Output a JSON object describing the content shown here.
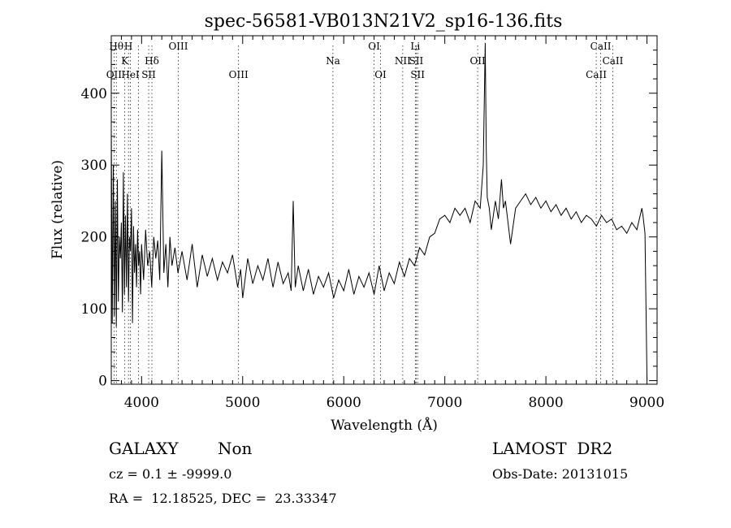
{
  "chart_data": {
    "type": "line",
    "title": "spec-56581-VB013N21V2_sp16-136.fits",
    "xlabel": "Wavelength (Å)",
    "ylabel": "Flux (relative)",
    "xlim": [
      3700,
      9100
    ],
    "ylim": [
      -5,
      480
    ],
    "xticks": [
      4000,
      5000,
      6000,
      7000,
      8000,
      9000
    ],
    "yticks": [
      0,
      100,
      200,
      300,
      400
    ],
    "grid": false,
    "series": [
      {
        "x": [
          3700,
          3710,
          3720,
          3730,
          3740,
          3750,
          3760,
          3770,
          3780,
          3790,
          3800,
          3810,
          3820,
          3830,
          3840,
          3850,
          3860,
          3870,
          3880,
          3890,
          3900,
          3910,
          3920,
          3930,
          3940,
          3950,
          3960,
          3970,
          3980,
          3990,
          4000,
          4020,
          4040,
          4060,
          4080,
          4100,
          4120,
          4140,
          4160,
          4180,
          4200,
          4220,
          4240,
          4260,
          4280,
          4300,
          4330,
          4360,
          4400,
          4450,
          4500,
          4550,
          4600,
          4650,
          4700,
          4750,
          4800,
          4850,
          4900,
          4950,
          4980,
          5000,
          5050,
          5100,
          5150,
          5200,
          5250,
          5300,
          5350,
          5400,
          5450,
          5480,
          5500,
          5520,
          5550,
          5600,
          5650,
          5700,
          5750,
          5800,
          5850,
          5900,
          5950,
          6000,
          6050,
          6100,
          6150,
          6200,
          6250,
          6300,
          6350,
          6400,
          6450,
          6500,
          6550,
          6600,
          6650,
          6700,
          6750,
          6800,
          6850,
          6900,
          6950,
          7000,
          7050,
          7100,
          7150,
          7200,
          7250,
          7300,
          7350,
          7380,
          7400,
          7410,
          7420,
          7440,
          7460,
          7500,
          7530,
          7560,
          7580,
          7600,
          7650,
          7700,
          7750,
          7800,
          7850,
          7900,
          7950,
          8000,
          8050,
          8100,
          8150,
          8200,
          8250,
          8300,
          8350,
          8400,
          8450,
          8500,
          8550,
          8600,
          8650,
          8700,
          8750,
          8800,
          8850,
          8900,
          8950,
          8960,
          8980,
          9000
        ],
        "y": [
          355,
          80,
          300,
          90,
          250,
          75,
          280,
          110,
          200,
          170,
          220,
          95,
          290,
          120,
          230,
          130,
          260,
          110,
          200,
          180,
          240,
          80,
          215,
          150,
          190,
          130,
          210,
          160,
          180,
          120,
          190,
          140,
          210,
          160,
          180,
          130,
          200,
          170,
          195,
          140,
          320,
          150,
          190,
          130,
          200,
          160,
          185,
          150,
          180,
          140,
          190,
          130,
          175,
          145,
          170,
          140,
          165,
          150,
          175,
          130,
          155,
          115,
          170,
          135,
          160,
          140,
          170,
          130,
          165,
          135,
          150,
          125,
          250,
          130,
          160,
          125,
          155,
          120,
          145,
          130,
          150,
          115,
          140,
          125,
          155,
          120,
          145,
          130,
          150,
          120,
          160,
          125,
          150,
          135,
          165,
          145,
          170,
          160,
          185,
          175,
          200,
          205,
          225,
          230,
          220,
          240,
          230,
          240,
          220,
          250,
          240,
          300,
          470,
          320,
          255,
          240,
          210,
          250,
          225,
          280,
          240,
          250,
          190,
          240,
          250,
          260,
          245,
          255,
          240,
          250,
          235,
          245,
          230,
          240,
          225,
          235,
          220,
          230,
          225,
          215,
          230,
          220,
          225,
          210,
          215,
          205,
          220,
          210,
          240,
          230,
          205,
          0
        ]
      }
    ],
    "line_labels": [
      {
        "label": "Hθ",
        "x": 3750,
        "row": 1
      },
      {
        "label": "H",
        "x": 3870,
        "row": 1
      },
      {
        "label": "OIII",
        "x": 4363,
        "row": 1
      },
      {
        "label": "OI",
        "x": 6300,
        "row": 1
      },
      {
        "label": "Li",
        "x": 6708,
        "row": 1
      },
      {
        "label": "CaII",
        "x": 8542,
        "row": 1
      },
      {
        "label": "K",
        "x": 3834,
        "row": 2
      },
      {
        "label": "Hδ",
        "x": 4102,
        "row": 2
      },
      {
        "label": "Na",
        "x": 5893,
        "row": 2
      },
      {
        "label": "NII",
        "x": 6584,
        "row": 2
      },
      {
        "label": "SII",
        "x": 6717,
        "row": 2
      },
      {
        "label": "OII",
        "x": 7325,
        "row": 2
      },
      {
        "label": "CaII",
        "x": 8662,
        "row": 2
      },
      {
        "label": "OII",
        "x": 3727,
        "row": 3
      },
      {
        "label": "HeI",
        "x": 3889,
        "row": 3
      },
      {
        "label": "SII",
        "x": 4070,
        "row": 3
      },
      {
        "label": "OIII",
        "x": 4959,
        "row": 3
      },
      {
        "label": "OI",
        "x": 6364,
        "row": 3
      },
      {
        "label": "SII",
        "x": 6731,
        "row": 3
      },
      {
        "label": "CaII",
        "x": 8498,
        "row": 3
      }
    ],
    "line_markers": [
      3727,
      3750,
      3834,
      3870,
      3889,
      3970,
      4070,
      4102,
      4363,
      4959,
      5893,
      6300,
      6364,
      6584,
      6708,
      6717,
      6731,
      7325,
      8498,
      8542,
      8662
    ]
  },
  "footer": {
    "class_label": "GALAXY",
    "subclass_label": "Non",
    "survey": "LAMOST  DR2",
    "redshift": "cz = 0.1 ± -9999.0",
    "obs_date": "Obs-Date: 20131015",
    "coords": "RA =  12.18525, DEC =  23.33347"
  }
}
